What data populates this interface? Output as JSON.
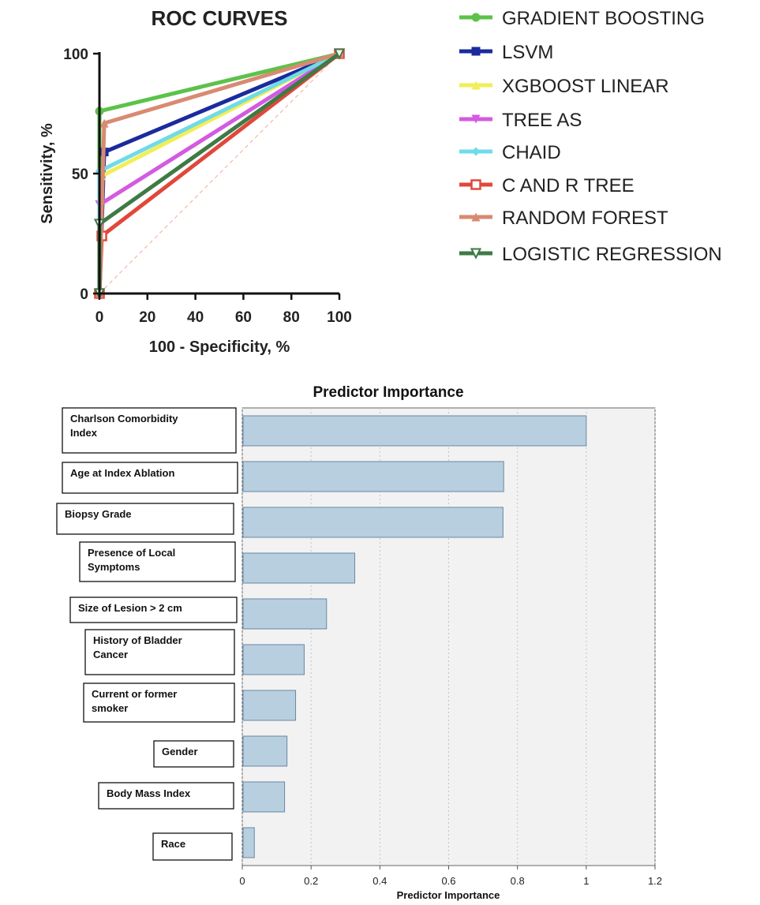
{
  "chart_data": [
    {
      "type": "line",
      "title": "ROC CURVES",
      "xlabel": "100 - Specificity, %",
      "ylabel": "Sensitivity, %",
      "xlim": [
        0,
        100
      ],
      "ylim": [
        0,
        100
      ],
      "xticks": [
        "0",
        "20",
        "40",
        "60",
        "80",
        "100"
      ],
      "yticks": [
        "0",
        "50",
        "100"
      ],
      "legend_position": "right",
      "reference_line": {
        "from": [
          0,
          0
        ],
        "to": [
          100,
          100
        ],
        "style": "dashed",
        "color": "#f2b8a6"
      },
      "series": [
        {
          "name": "GRADIENT BOOSTING",
          "color": "#5cc24a",
          "marker": "circle",
          "points": [
            [
              0,
              0
            ],
            [
              0,
              76
            ],
            [
              100,
              100
            ]
          ]
        },
        {
          "name": "LSVM",
          "color": "#1a2b9c",
          "marker": "square",
          "points": [
            [
              0,
              0
            ],
            [
              2,
              59
            ],
            [
              100,
              100
            ]
          ]
        },
        {
          "name": "XGBOOST LINEAR",
          "color": "#f2ee55",
          "marker": "triangle-up",
          "points": [
            [
              0,
              0
            ],
            [
              1,
              49
            ],
            [
              100,
              100
            ]
          ]
        },
        {
          "name": "TREE AS",
          "color": "#d45ae0",
          "marker": "triangle-down",
          "points": [
            [
              0,
              0
            ],
            [
              0,
              37
            ],
            [
              100,
              100
            ]
          ]
        },
        {
          "name": "CHAID",
          "color": "#6fdbe8",
          "marker": "diamond",
          "points": [
            [
              0,
              0
            ],
            [
              0,
              51
            ],
            [
              100,
              100
            ]
          ]
        },
        {
          "name": "C AND R TREE",
          "color": "#e0483a",
          "marker": "square-open",
          "points": [
            [
              0,
              0
            ],
            [
              1,
              24
            ],
            [
              100,
              100
            ]
          ]
        },
        {
          "name": "RANDOM FOREST",
          "color": "#d98a72",
          "marker": "triangle-up",
          "points": [
            [
              0,
              0
            ],
            [
              2,
              71
            ],
            [
              100,
              100
            ]
          ]
        },
        {
          "name": "LOGISTIC REGRESSION",
          "color": "#3e7a45",
          "marker": "triangle-down-open",
          "points": [
            [
              0,
              0
            ],
            [
              0,
              29
            ],
            [
              100,
              100
            ]
          ]
        }
      ]
    },
    {
      "type": "bar",
      "orientation": "horizontal",
      "title": "Predictor Importance",
      "xlabel": "Predictor Importance",
      "xlim": [
        0,
        1.2
      ],
      "xticks": [
        "0",
        "0.2",
        "0.4",
        "0.6",
        "0.8",
        "1",
        "1.2"
      ],
      "bar_color": "#b8cfe0",
      "categories": [
        "Charlson Comorbidity Index",
        "Age at Index Ablation",
        "Biopsy Grade",
        "Presence of Local Symptoms",
        "Size of Lesion > 2 cm",
        "History of Bladder Cancer",
        "Current or former smoker",
        "Gender",
        "Body Mass Index",
        "Race"
      ],
      "label_lines": [
        [
          "Charlson Comorbidity",
          "Index"
        ],
        [
          "Age at Index Ablation"
        ],
        [
          "Biopsy Grade"
        ],
        [
          "Presence of Local",
          "Symptoms"
        ],
        [
          "Size of Lesion > 2 cm"
        ],
        [
          "History of Bladder",
          "Cancer"
        ],
        [
          "Current or former",
          "smoker"
        ],
        [
          "Gender"
        ],
        [
          "Body Mass Index"
        ],
        [
          "Race"
        ]
      ],
      "values": [
        1.0,
        0.76,
        0.758,
        0.327,
        0.245,
        0.18,
        0.155,
        0.13,
        0.123,
        0.035
      ]
    }
  ]
}
